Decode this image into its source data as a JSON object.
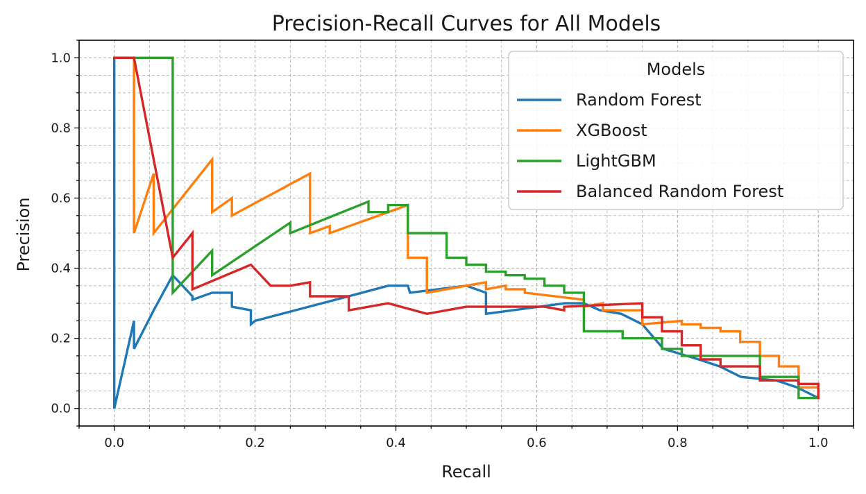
{
  "chart_data": {
    "type": "line",
    "title": "Precision-Recall Curves for All Models",
    "xlabel": "Recall",
    "ylabel": "Precision",
    "xlim": [
      -0.05,
      1.05
    ],
    "ylim": [
      -0.05,
      1.05
    ],
    "xticks": [
      "0.0",
      "0.2",
      "0.4",
      "0.6",
      "0.8",
      "1.0"
    ],
    "yticks": [
      "0.0",
      "0.2",
      "0.4",
      "0.6",
      "0.8",
      "1.0"
    ],
    "grid": "major and minor, dashed",
    "legend": {
      "title": "Models",
      "placement": "top-right"
    },
    "series": [
      {
        "name": "Random Forest",
        "color": "#1f77b4",
        "x": [
          1.0,
          0.97,
          0.94,
          0.89,
          0.86,
          0.83,
          0.78,
          0.75,
          0.72,
          0.69,
          0.667,
          0.64,
          0.528,
          0.528,
          0.5,
          0.42,
          0.417,
          0.389,
          0.333,
          0.2,
          0.194,
          0.194,
          0.167,
          0.167,
          0.139,
          0.111,
          0.111,
          0.083,
          0.056,
          0.028,
          0.028,
          0.0,
          0.0
        ],
        "y": [
          0.03,
          0.06,
          0.08,
          0.09,
          0.12,
          0.14,
          0.17,
          0.24,
          0.27,
          0.28,
          0.3,
          0.3,
          0.27,
          0.33,
          0.35,
          0.33,
          0.35,
          0.35,
          0.32,
          0.25,
          0.24,
          0.28,
          0.29,
          0.33,
          0.33,
          0.31,
          0.32,
          0.38,
          0.28,
          0.17,
          0.25,
          0.0,
          1.0
        ]
      },
      {
        "name": "XGBoost",
        "color": "#ff7f0e",
        "x": [
          1.0,
          0.972,
          0.972,
          0.944,
          0.944,
          0.917,
          0.917,
          0.889,
          0.889,
          0.861,
          0.861,
          0.833,
          0.833,
          0.806,
          0.806,
          0.75,
          0.75,
          0.694,
          0.694,
          0.667,
          0.667,
          0.583,
          0.583,
          0.556,
          0.556,
          0.528,
          0.528,
          0.444,
          0.444,
          0.417,
          0.417,
          0.306,
          0.306,
          0.278,
          0.278,
          0.167,
          0.167,
          0.139,
          0.139,
          0.056,
          0.056,
          0.028,
          0.028,
          0.0
        ],
        "y": [
          0.06,
          0.06,
          0.12,
          0.12,
          0.15,
          0.15,
          0.19,
          0.19,
          0.22,
          0.22,
          0.23,
          0.23,
          0.24,
          0.24,
          0.25,
          0.24,
          0.28,
          0.28,
          0.3,
          0.29,
          0.31,
          0.33,
          0.34,
          0.34,
          0.35,
          0.34,
          0.36,
          0.33,
          0.43,
          0.43,
          0.58,
          0.5,
          0.52,
          0.5,
          0.67,
          0.55,
          0.6,
          0.56,
          0.71,
          0.5,
          0.67,
          0.5,
          1.0,
          1.0
        ]
      },
      {
        "name": "LightGBM",
        "color": "#2ca02c",
        "x": [
          1.0,
          0.972,
          0.972,
          0.917,
          0.917,
          0.806,
          0.806,
          0.778,
          0.778,
          0.722,
          0.722,
          0.667,
          0.667,
          0.639,
          0.639,
          0.611,
          0.611,
          0.583,
          0.583,
          0.556,
          0.556,
          0.528,
          0.528,
          0.5,
          0.5,
          0.472,
          0.472,
          0.444,
          0.444,
          0.417,
          0.417,
          0.389,
          0.389,
          0.361,
          0.361,
          0.25,
          0.25,
          0.139,
          0.139,
          0.083,
          0.083,
          0.0
        ],
        "y": [
          0.03,
          0.03,
          0.09,
          0.09,
          0.15,
          0.15,
          0.17,
          0.17,
          0.2,
          0.2,
          0.22,
          0.22,
          0.33,
          0.33,
          0.35,
          0.35,
          0.37,
          0.37,
          0.38,
          0.38,
          0.39,
          0.39,
          0.41,
          0.41,
          0.43,
          0.43,
          0.5,
          0.5,
          0.5,
          0.5,
          0.58,
          0.58,
          0.56,
          0.56,
          0.59,
          0.5,
          0.53,
          0.38,
          0.45,
          0.33,
          1.0,
          1.0
        ]
      },
      {
        "name": "Balanced Random Forest",
        "color": "#d62728",
        "x": [
          1.0,
          1.0,
          0.972,
          0.972,
          0.917,
          0.917,
          0.861,
          0.861,
          0.833,
          0.833,
          0.806,
          0.806,
          0.778,
          0.778,
          0.75,
          0.75,
          0.639,
          0.639,
          0.611,
          0.611,
          0.5,
          0.444,
          0.389,
          0.333,
          0.333,
          0.278,
          0.278,
          0.25,
          0.222,
          0.194,
          0.111,
          0.111,
          0.083,
          0.028,
          0.0
        ],
        "y": [
          0.03,
          0.07,
          0.07,
          0.08,
          0.08,
          0.12,
          0.12,
          0.14,
          0.14,
          0.18,
          0.18,
          0.22,
          0.22,
          0.26,
          0.26,
          0.3,
          0.29,
          0.28,
          0.29,
          0.29,
          0.29,
          0.27,
          0.3,
          0.28,
          0.32,
          0.32,
          0.36,
          0.35,
          0.35,
          0.41,
          0.34,
          0.5,
          0.43,
          1.0,
          1.0
        ]
      }
    ]
  }
}
